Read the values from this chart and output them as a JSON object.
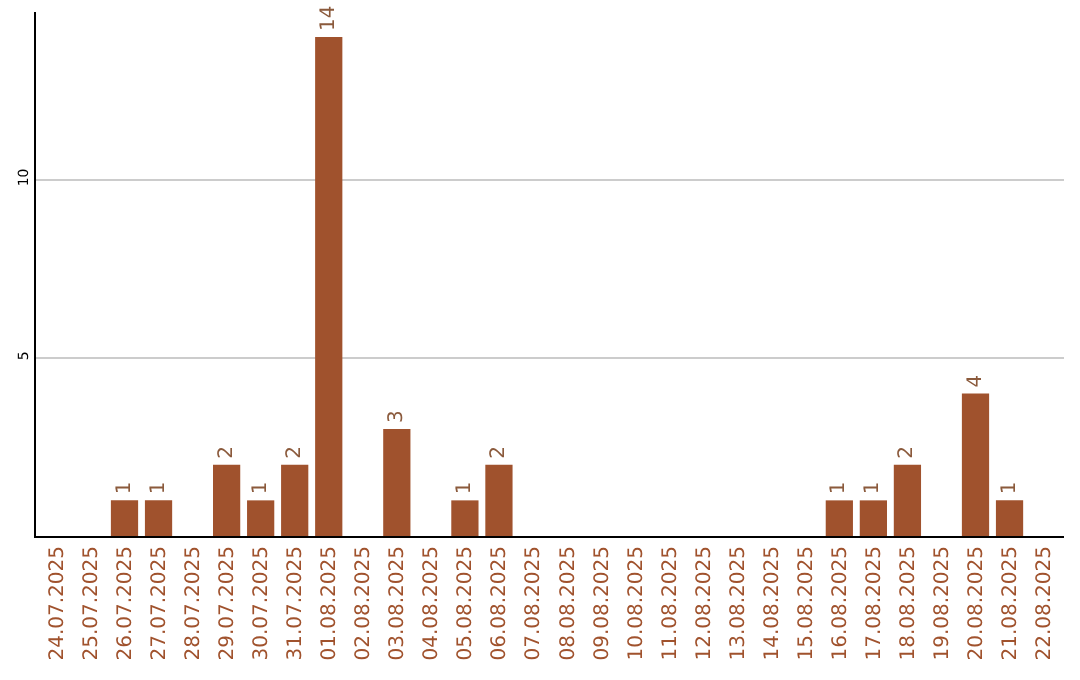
{
  "chart_data": {
    "type": "bar",
    "categories": [
      "24.07.2025",
      "25.07.2025",
      "26.07.2025",
      "27.07.2025",
      "28.07.2025",
      "29.07.2025",
      "30.07.2025",
      "31.07.2025",
      "01.08.2025",
      "02.08.2025",
      "03.08.2025",
      "04.08.2025",
      "05.08.2025",
      "06.08.2025",
      "07.08.2025",
      "08.08.2025",
      "09.08.2025",
      "10.08.2025",
      "11.08.2025",
      "12.08.2025",
      "13.08.2025",
      "14.08.2025",
      "15.08.2025",
      "16.08.2025",
      "17.08.2025",
      "18.08.2025",
      "19.08.2025",
      "20.08.2025",
      "21.08.2025",
      "22.08.2025"
    ],
    "values": [
      0,
      0,
      1,
      1,
      0,
      2,
      1,
      2,
      14,
      0,
      3,
      0,
      1,
      2,
      0,
      0,
      0,
      0,
      0,
      0,
      0,
      0,
      0,
      1,
      1,
      2,
      0,
      4,
      1,
      0
    ],
    "value_labels": [
      null,
      null,
      "1",
      "1",
      null,
      "2",
      "1",
      "2",
      "14",
      null,
      "3",
      null,
      "1",
      "2",
      null,
      null,
      null,
      null,
      null,
      null,
      null,
      null,
      null,
      "1",
      "1",
      "2",
      null,
      "4",
      "1",
      null
    ],
    "color": "#a0522d",
    "ylim": [
      0,
      14.7
    ],
    "yticks": [
      5,
      10
    ],
    "grid": "y",
    "legend": false
  }
}
